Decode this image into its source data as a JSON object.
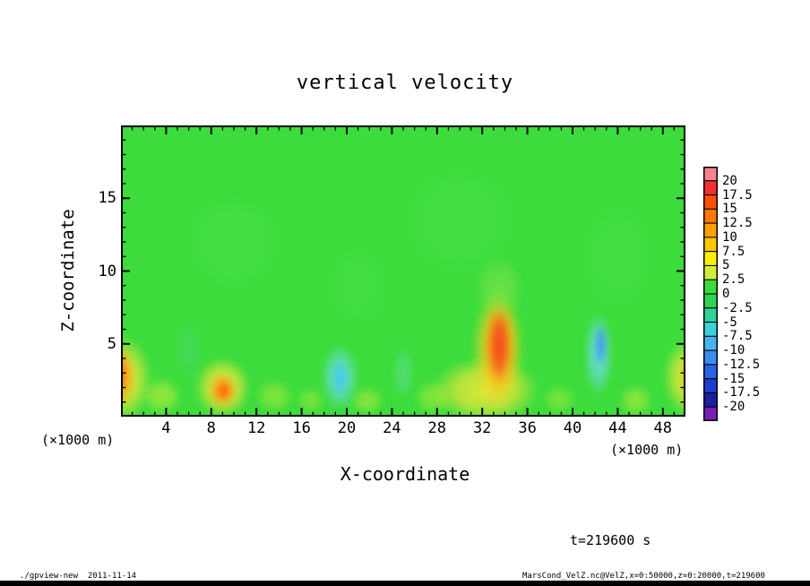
{
  "title": "vertical velocity",
  "axes": {
    "x": {
      "label": "X-coordinate",
      "unit": "(×1000 m)",
      "min": 0,
      "max": 50,
      "major_ticks": [
        4,
        8,
        12,
        16,
        20,
        24,
        28,
        32,
        36,
        40,
        44,
        48
      ],
      "minor_step": 1
    },
    "z": {
      "label": "Z-coordinate",
      "unit": "(×1000 m)",
      "min": 0,
      "max": 20,
      "major_ticks": [
        5,
        10,
        15
      ],
      "minor_step": 1
    }
  },
  "colorbar": {
    "labels": [
      "20",
      "17.5",
      "15",
      "12.5",
      "10",
      "7.5",
      "5",
      "2.5",
      "0",
      "-2.5",
      "-5",
      "-7.5",
      "-10",
      "-12.5",
      "-15",
      "-17.5",
      "-20"
    ],
    "segments": [
      "#F5828C",
      "#F03032",
      "#FF5000",
      "#FF7800",
      "#FFA000",
      "#FFC800",
      "#FFF000",
      "#D2EE3C",
      "#3CDC3C",
      "#2FD455",
      "#2FD29B",
      "#3CD2DC",
      "#46B4F0",
      "#3C8CF0",
      "#2864E6",
      "#1E3CD2",
      "#1E1EA0",
      "#781EB4"
    ],
    "border_color": "#000000"
  },
  "annotations": {
    "time": "t=219600 s",
    "footer_left": "./gpview-new  2011-11-14",
    "footer_right": "MarsCond_VelZ.nc@VelZ,x=0:50000,z=0:20000,t=219600"
  },
  "chart_data": {
    "type": "heatmap",
    "title": "vertical velocity",
    "xlabel": "X-coordinate (×1000 m)",
    "ylabel": "Z-coordinate (×1000 m)",
    "xlim": [
      0,
      50
    ],
    "ylim": [
      0,
      20
    ],
    "levels": [
      -20,
      -17.5,
      -15,
      -12.5,
      -10,
      -7.5,
      -5,
      -2.5,
      0,
      2.5,
      5,
      7.5,
      10,
      12.5,
      15,
      17.5,
      20
    ],
    "background_value": 0,
    "background_color": "#3CDC3C",
    "features": [
      {
        "x": 0.0,
        "z": 2.6,
        "rx": 2.8,
        "rz": 3.0,
        "color": "#FFE93C",
        "alpha": 0.9,
        "value": 6
      },
      {
        "x": -0.2,
        "z": 2.8,
        "rx": 1.5,
        "rz": 2.2,
        "color": "#FF9614",
        "alpha": 0.95,
        "value": 10
      },
      {
        "x": -0.3,
        "z": 2.9,
        "rx": 0.8,
        "rz": 1.4,
        "color": "#FF5A0A",
        "alpha": 0.9,
        "value": 13
      },
      {
        "x": 3.6,
        "z": 1.4,
        "rx": 1.8,
        "rz": 1.3,
        "color": "#D2F03C",
        "alpha": 0.6,
        "value": 4
      },
      {
        "x": 9.0,
        "z": 2.0,
        "rx": 2.5,
        "rz": 2.1,
        "color": "#FFE93C",
        "alpha": 0.9,
        "value": 6
      },
      {
        "x": 9.0,
        "z": 1.8,
        "rx": 1.3,
        "rz": 1.2,
        "color": "#FF9614",
        "alpha": 0.95,
        "value": 10
      },
      {
        "x": 9.1,
        "z": 1.8,
        "rx": 0.65,
        "rz": 0.65,
        "color": "#FF5A0A",
        "alpha": 0.85,
        "value": 13
      },
      {
        "x": 13.6,
        "z": 1.4,
        "rx": 1.7,
        "rz": 1.2,
        "color": "#C8EE3C",
        "alpha": 0.5,
        "value": 3
      },
      {
        "x": 16.8,
        "z": 1.1,
        "rx": 1.3,
        "rz": 0.9,
        "color": "#C8EE3C",
        "alpha": 0.45,
        "value": 3
      },
      {
        "x": 21.8,
        "z": 1.1,
        "rx": 1.5,
        "rz": 1.0,
        "color": "#D2F03C",
        "alpha": 0.5,
        "value": 3.5
      },
      {
        "x": 27.6,
        "z": 1.3,
        "rx": 1.7,
        "rz": 1.2,
        "color": "#C8EE3C",
        "alpha": 0.5,
        "value": 3
      },
      {
        "x": 32.3,
        "z": 1.8,
        "rx": 4.8,
        "rz": 2.3,
        "color": "#FFE93C",
        "alpha": 0.85,
        "value": 6
      },
      {
        "x": 33.4,
        "z": 4.6,
        "rx": 2.4,
        "rz": 4.2,
        "color": "#FFD21E",
        "alpha": 0.9,
        "value": 8
      },
      {
        "x": 33.5,
        "z": 4.8,
        "rx": 1.6,
        "rz": 3.3,
        "color": "#FF9614",
        "alpha": 0.95,
        "value": 11
      },
      {
        "x": 33.5,
        "z": 4.9,
        "rx": 1.0,
        "rz": 2.5,
        "color": "#F4461E",
        "alpha": 0.95,
        "value": 15
      },
      {
        "x": 33.5,
        "z": 8.8,
        "rx": 2.2,
        "rz": 2.2,
        "color": "#A0E850",
        "alpha": 0.45,
        "value": 3
      },
      {
        "x": 38.8,
        "z": 1.2,
        "rx": 1.5,
        "rz": 1.0,
        "color": "#C8EE3C",
        "alpha": 0.45,
        "value": 3
      },
      {
        "x": 45.6,
        "z": 1.1,
        "rx": 1.5,
        "rz": 1.1,
        "color": "#D2F03C",
        "alpha": 0.55,
        "value": 3.5
      },
      {
        "x": 50.3,
        "z": 2.7,
        "rx": 2.3,
        "rz": 2.7,
        "color": "#FFE93C",
        "alpha": 0.85,
        "value": 6
      },
      {
        "x": 50.6,
        "z": 2.7,
        "rx": 1.1,
        "rz": 1.7,
        "color": "#FFAA14",
        "alpha": 0.8,
        "value": 9
      },
      {
        "x": 19.4,
        "z": 2.7,
        "rx": 1.7,
        "rz": 2.3,
        "color": "#6EDCE6",
        "alpha": 0.85,
        "value": -5
      },
      {
        "x": 19.4,
        "z": 2.6,
        "rx": 0.8,
        "rz": 1.4,
        "color": "#3CC8F0",
        "alpha": 0.8,
        "value": -8
      },
      {
        "x": 25.0,
        "z": 3.0,
        "rx": 1.0,
        "rz": 1.8,
        "color": "#78E0DC",
        "alpha": 0.35,
        "value": -3
      },
      {
        "x": 42.3,
        "z": 4.3,
        "rx": 1.3,
        "rz": 2.9,
        "color": "#6EDCE6",
        "alpha": 0.9,
        "value": -6
      },
      {
        "x": 42.5,
        "z": 4.9,
        "rx": 0.65,
        "rz": 1.5,
        "color": "#3C96F0",
        "alpha": 0.9,
        "value": -10
      },
      {
        "x": 6.0,
        "z": 4.5,
        "rx": 1.2,
        "rz": 2.0,
        "color": "#50D2A0",
        "alpha": 0.3,
        "value": -2
      },
      {
        "x": 10.0,
        "z": 12.0,
        "rx": 4.5,
        "rz": 3.5,
        "color": "#5CE65C",
        "alpha": 0.25,
        "value": 1
      },
      {
        "x": 30.0,
        "z": 13.5,
        "rx": 5.5,
        "rz": 4.0,
        "color": "#5CE65C",
        "alpha": 0.22,
        "value": 1
      },
      {
        "x": 44.0,
        "z": 11.0,
        "rx": 3.5,
        "rz": 4.0,
        "color": "#5CE65C",
        "alpha": 0.2,
        "value": 1
      },
      {
        "x": 21.0,
        "z": 9.0,
        "rx": 3.0,
        "rz": 3.0,
        "color": "#5CE65C",
        "alpha": 0.18,
        "value": 1
      }
    ]
  }
}
